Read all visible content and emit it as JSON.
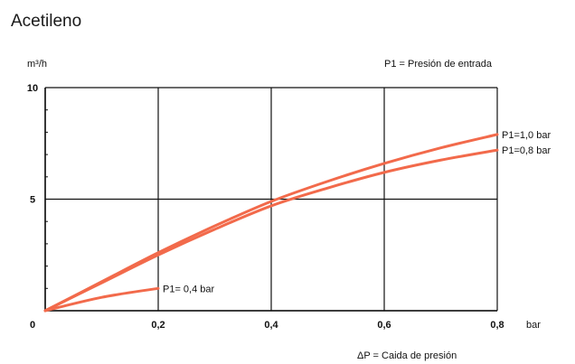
{
  "page": {
    "title": "Acetileno"
  },
  "chart_data": {
    "type": "line",
    "title": "",
    "xlabel": "ΔP = Caida de presión",
    "ylabel": "m³/h",
    "x_unit": "bar",
    "legend_note": "P1 = Presión de entrada",
    "xlim": [
      0,
      0.8
    ],
    "ylim": [
      0,
      10
    ],
    "x_ticks": [
      {
        "value": 0,
        "label": "0"
      },
      {
        "value": 0.2,
        "label": "0,2"
      },
      {
        "value": 0.4,
        "label": "0,4"
      },
      {
        "value": 0.6,
        "label": "0,6"
      },
      {
        "value": 0.8,
        "label": "0,8"
      }
    ],
    "y_ticks": [
      {
        "value": 0,
        "label": ""
      },
      {
        "value": 5,
        "label": "5"
      },
      {
        "value": 10,
        "label": "10"
      }
    ],
    "grid": true,
    "series": [
      {
        "name": "P1=1,0 bar",
        "color": "#f26a4b",
        "x": [
          0,
          0.1,
          0.2,
          0.3,
          0.4,
          0.5,
          0.6,
          0.7,
          0.8
        ],
        "y": [
          0,
          1.3,
          2.6,
          3.8,
          4.9,
          5.8,
          6.6,
          7.3,
          7.9
        ]
      },
      {
        "name": "P1=0,8 bar",
        "color": "#f26a4b",
        "x": [
          0,
          0.1,
          0.2,
          0.3,
          0.4,
          0.5,
          0.6,
          0.7,
          0.8
        ],
        "y": [
          0,
          1.25,
          2.5,
          3.65,
          4.7,
          5.5,
          6.2,
          6.75,
          7.2
        ]
      },
      {
        "name": "P1= 0,4 bar",
        "color": "#f26a4b",
        "x": [
          0,
          0.1,
          0.2
        ],
        "y": [
          0,
          0.6,
          1.0
        ]
      }
    ]
  }
}
